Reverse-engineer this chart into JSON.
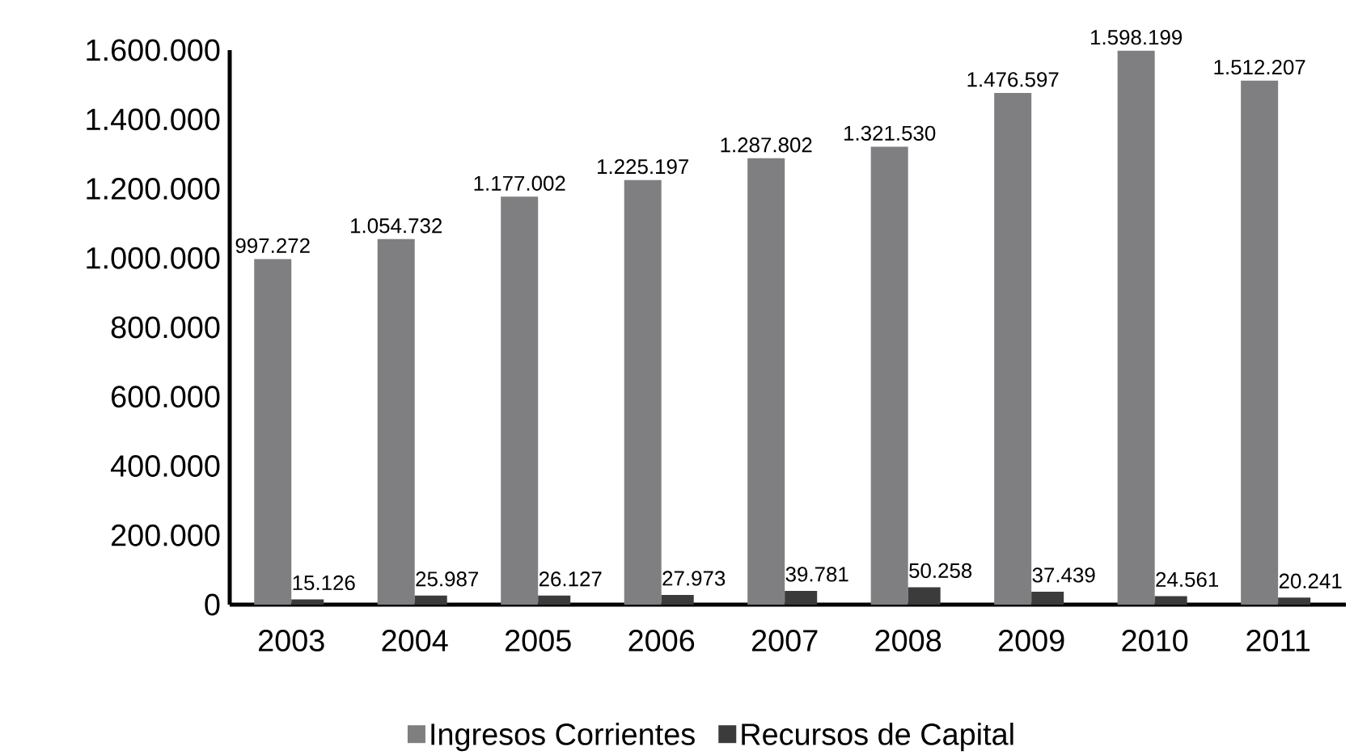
{
  "chart_data": {
    "type": "bar",
    "categories": [
      "2003",
      "2004",
      "2005",
      "2006",
      "2007",
      "2008",
      "2009",
      "2010",
      "2011"
    ],
    "series": [
      {
        "name": "Ingresos Corrientes",
        "color": "#7f7f81",
        "values": [
          997272,
          1054732,
          1177002,
          1225197,
          1287802,
          1321530,
          1476597,
          1598199,
          1512207
        ],
        "value_labels": [
          "997.272",
          "1.054.732",
          "1.177.002",
          "1.225.197",
          "1.287.802",
          "1.321.530",
          "1.476.597",
          "1.598.199",
          "1.512.207"
        ]
      },
      {
        "name": "Recursos de Capital",
        "color": "#3b3b3b",
        "values": [
          15126,
          25987,
          26127,
          27973,
          39781,
          50258,
          37439,
          24561,
          20241
        ],
        "value_labels": [
          "15.126",
          "25.987",
          "26.127",
          "27.973",
          "39.781",
          "50.258",
          "37.439",
          "24.561",
          "20.241"
        ]
      }
    ],
    "ylim": [
      0,
      1600000
    ],
    "yticks": [
      {
        "value": 0,
        "label": "0"
      },
      {
        "value": 200000,
        "label": "200.000"
      },
      {
        "value": 400000,
        "label": "400.000"
      },
      {
        "value": 600000,
        "label": "600.000"
      },
      {
        "value": 800000,
        "label": "800.000"
      },
      {
        "value": 1000000,
        "label": "1.000.000"
      },
      {
        "value": 1200000,
        "label": "1.200.000"
      },
      {
        "value": 1400000,
        "label": "1.400.000"
      },
      {
        "value": 1600000,
        "label": "1.600.000"
      }
    ],
    "grid": false,
    "legend": "bottom"
  }
}
